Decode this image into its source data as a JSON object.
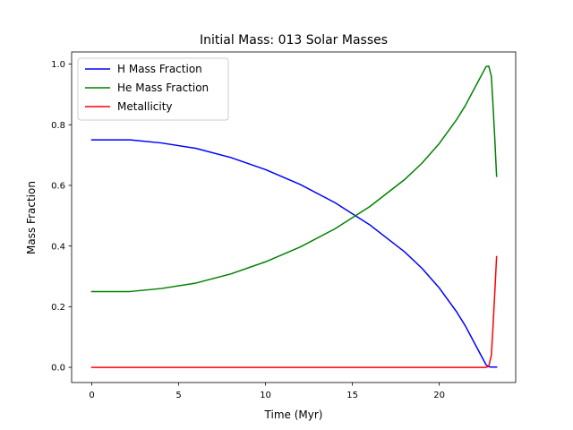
{
  "chart_data": {
    "type": "line",
    "title": "Initial Mass: 013 Solar Masses",
    "xlabel": "Time (Myr)",
    "ylabel": "Mass Fraction",
    "xlim": [
      -1.16,
      24.4
    ],
    "ylim": [
      -0.05,
      1.04
    ],
    "xticks": [
      0,
      5,
      10,
      15,
      20
    ],
    "yticks": [
      0.0,
      0.2,
      0.4,
      0.6,
      0.8,
      1.0
    ],
    "grid": false,
    "legend_position": "upper left",
    "series": [
      {
        "name": "H Mass Fraction",
        "color": "#0000ff",
        "x": [
          0,
          2.2,
          4,
          6,
          8,
          10,
          12,
          14,
          16,
          18,
          19,
          20,
          21,
          21.5,
          22,
          22.4,
          22.7,
          22.85,
          23.0,
          23.3
        ],
        "y": [
          0.75,
          0.75,
          0.74,
          0.722,
          0.692,
          0.652,
          0.603,
          0.543,
          0.47,
          0.381,
          0.327,
          0.262,
          0.183,
          0.137,
          0.083,
          0.04,
          0.008,
          0.002,
          0.001,
          0.001
        ]
      },
      {
        "name": "He Mass Fraction",
        "color": "#008000",
        "x": [
          0,
          2.2,
          4,
          6,
          8,
          10,
          12,
          14,
          16,
          18,
          19,
          20,
          21,
          21.5,
          22,
          22.4,
          22.7,
          22.85,
          23.0,
          23.1,
          23.2,
          23.3
        ],
        "y": [
          0.25,
          0.25,
          0.26,
          0.278,
          0.308,
          0.348,
          0.397,
          0.457,
          0.53,
          0.619,
          0.673,
          0.738,
          0.817,
          0.863,
          0.917,
          0.96,
          0.992,
          0.993,
          0.96,
          0.86,
          0.75,
          0.63
        ]
      },
      {
        "name": "Metallicity",
        "color": "#ff0000",
        "x": [
          0,
          5,
          10,
          15,
          20,
          22.7,
          22.85,
          23.0,
          23.1,
          23.2,
          23.3
        ],
        "y": [
          0.0,
          0.0,
          0.0,
          0.0,
          0.0,
          0.0,
          0.004,
          0.04,
          0.14,
          0.25,
          0.365
        ]
      }
    ]
  }
}
